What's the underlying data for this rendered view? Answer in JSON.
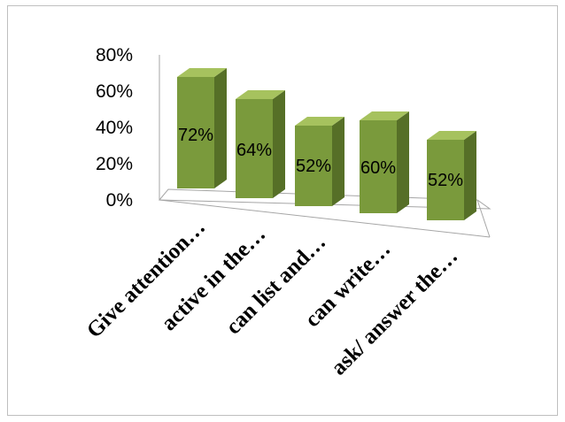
{
  "chart_data": {
    "type": "bar",
    "style": "3d-column",
    "categories": [
      "Give attention…",
      "active in the…",
      "can list and…",
      "can write…",
      "ask/ answer the…"
    ],
    "values": [
      72,
      64,
      52,
      60,
      52
    ],
    "data_labels": [
      "72%",
      "64%",
      "52%",
      "60%",
      "52%"
    ],
    "y_ticks": [
      "0%",
      "20%",
      "40%",
      "60%",
      "80%"
    ],
    "ylim": [
      0,
      80
    ],
    "grid": false,
    "legend": "none",
    "colors": {
      "bar_front": "#7a9a3c",
      "bar_top": "#a6c25e",
      "bar_side": "#566f27",
      "frame": "#bfbfbf",
      "floor": "#a6a6a6"
    }
  }
}
